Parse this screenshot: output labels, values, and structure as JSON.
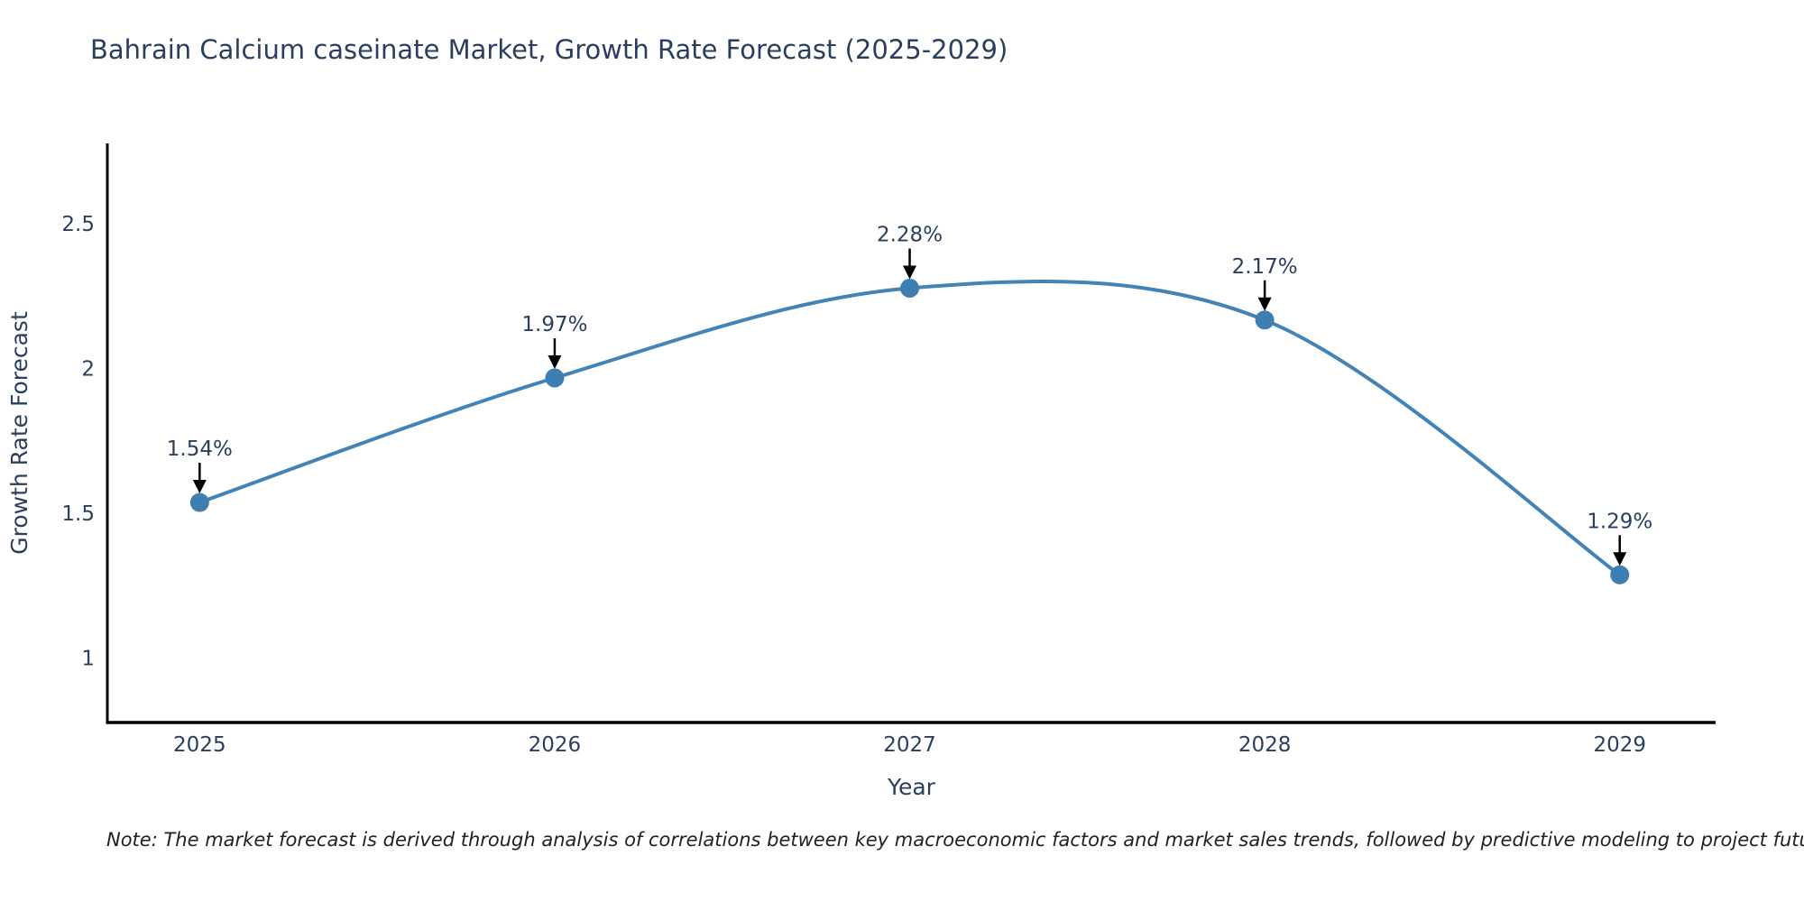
{
  "note": "Note: The market forecast is derived through analysis of correlations between key macroeconomic factors and market sales trends, followed by predictive modeling to project future sales",
  "chart_data": {
    "type": "line",
    "title": "Bahrain Calcium caseinate Market, Growth Rate Forecast (2025-2029)",
    "xlabel": "Year",
    "ylabel": "Growth Rate Forecast",
    "x": [
      2025,
      2026,
      2027,
      2028,
      2029
    ],
    "series": [
      {
        "name": "Growth Rate Forecast",
        "values": [
          1.54,
          1.97,
          2.28,
          2.17,
          1.29
        ]
      }
    ],
    "point_labels": [
      "1.54%",
      "1.97%",
      "2.28%",
      "2.17%",
      "1.29%"
    ],
    "x_tick_values": [
      2025,
      2026,
      2027,
      2028,
      2029
    ],
    "x_ticks": [
      "2025",
      "2026",
      "2027",
      "2028",
      "2029"
    ],
    "y_tick_values": [
      1,
      1.5,
      2,
      2.5
    ],
    "y_ticks": [
      "1",
      "1.5",
      "2",
      "2.5"
    ],
    "xlim": [
      2024.74,
      2029.27
    ],
    "ylim": [
      0.78,
      2.78
    ],
    "grid": false,
    "legend": false,
    "line_shape": "spline",
    "annotations_have_arrows": true,
    "colors": {
      "line": "#4383b5",
      "marker": "#3f7eb0",
      "arrow": "#000000",
      "text": "#2a3f5f",
      "axis": "#000000",
      "note_text": "#222222",
      "background": "#ffffff"
    }
  }
}
